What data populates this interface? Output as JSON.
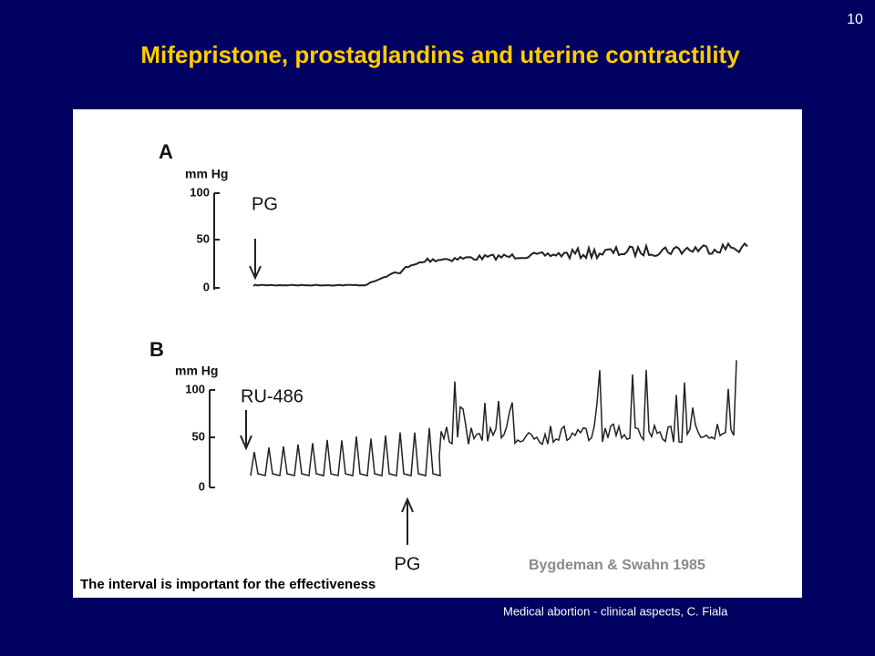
{
  "slide_number": "10",
  "title": "Mifepristone, prostaglandins  and uterine contractility",
  "figure": {
    "panel_a": {
      "label": "A",
      "unit": "mm Hg",
      "ticks": [
        "100",
        "50",
        "0"
      ],
      "marker": "PG"
    },
    "panel_b": {
      "label": "B",
      "unit": "mm Hg",
      "ticks": [
        "100",
        "50",
        "0"
      ],
      "marker": "RU-486",
      "second_marker": "PG"
    },
    "citation": "Bygdeman & Swahn 1985",
    "caption": "The interval is important for the effectiveness"
  },
  "footer": "Medical abortion - clinical aspects, C. Fiala"
}
